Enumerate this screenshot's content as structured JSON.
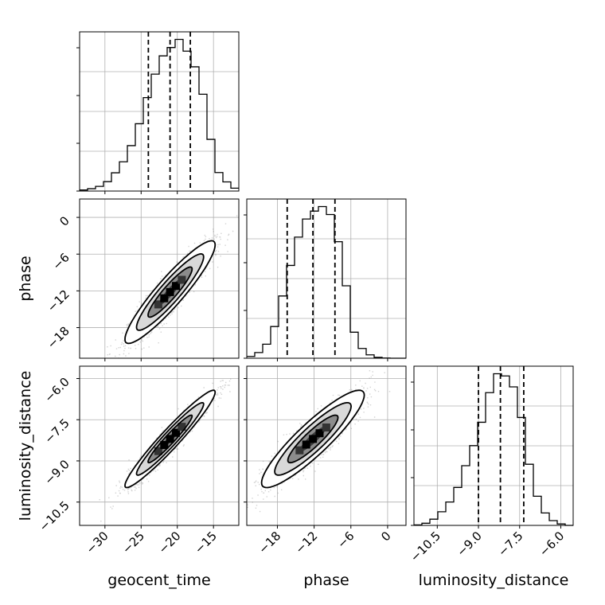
{
  "chart_data": {
    "type": "corner",
    "parameters": [
      "geocent_time",
      "phase",
      "luminosity_distance"
    ],
    "ranges": {
      "geocent_time": [
        -33.5,
        -11.5
      ],
      "phase": [
        -23,
        3
      ],
      "luminosity_distance": [
        -11.35,
        -5.55
      ]
    },
    "ticks": {
      "geocent_time": [
        -30,
        -25,
        -20,
        -15
      ],
      "phase": [
        -18,
        -12,
        -6,
        0
      ],
      "luminosity_distance": [
        -10.5,
        -9.0,
        -7.5,
        -6.0
      ]
    },
    "tick_labels": {
      "geocent_time": [
        "−30",
        "−25",
        "−20",
        "−15"
      ],
      "phase": [
        "−18",
        "−12",
        "−6",
        "0"
      ],
      "luminosity_distance": [
        "−10.5",
        "−9.0",
        "−7.5",
        "−6.0"
      ]
    },
    "quantiles": {
      "geocent_time": [
        -24.0,
        -21.0,
        -18.2
      ],
      "phase": [
        -16.4,
        -12.2,
        -8.6
      ],
      "luminosity_distance": [
        -9.0,
        -8.2,
        -7.35
      ]
    },
    "histograms": {
      "geocent_time": {
        "edges": [
          -33.5,
          -32.4,
          -31.3,
          -30.2,
          -29.1,
          -28.0,
          -26.9,
          -25.8,
          -24.7,
          -23.6,
          -22.5,
          -21.4,
          -20.3,
          -19.2,
          -18.1,
          -17.0,
          -15.9,
          -14.8,
          -13.7,
          -12.6,
          -11.5
        ],
        "counts": [
          0.4,
          0.9,
          1.8,
          3.6,
          7.0,
          11.2,
          17.4,
          25.8,
          35.8,
          44.8,
          51.8,
          55.0,
          58.1,
          53.6,
          47.6,
          37.1,
          19.8,
          7.1,
          3.5,
          1.1
        ]
      },
      "phase": {
        "edges": [
          -23.0,
          -21.7,
          -20.4,
          -19.1,
          -17.8,
          -16.5,
          -15.2,
          -13.9,
          -12.6,
          -11.3,
          -10.0,
          -8.7,
          -7.4,
          -6.1,
          -4.8,
          -3.5,
          -2.2,
          -0.9,
          0.4,
          1.7,
          3.0
        ],
        "counts": [
          0.8,
          2.5,
          6.2,
          14.0,
          27.5,
          41.0,
          53.5,
          61.5,
          65.0,
          67.0,
          63.5,
          51.5,
          32.0,
          11.5,
          4.3,
          1.5,
          0.4,
          0.1,
          0.0,
          0.0
        ]
      },
      "luminosity_distance": {
        "edges": [
          -11.35,
          -11.06,
          -10.77,
          -10.48,
          -10.19,
          -9.9,
          -9.61,
          -9.32,
          -9.03,
          -8.74,
          -8.45,
          -8.16,
          -7.87,
          -7.58,
          -7.29,
          -7.0,
          -6.71,
          -6.42,
          -6.13,
          -5.84,
          -5.55
        ],
        "counts": [
          0.2,
          0.9,
          2.6,
          5.7,
          9.8,
          15.9,
          25.0,
          33.4,
          43.2,
          55.6,
          63.5,
          62.6,
          58.0,
          45.2,
          25.6,
          12.2,
          5.2,
          2.0,
          0.6,
          0.0
        ]
      }
    },
    "pairs": [
      {
        "x": "geocent_time",
        "y": "phase",
        "correlation": 0.92
      },
      {
        "x": "geocent_time",
        "y": "luminosity_distance",
        "correlation": 0.96
      },
      {
        "x": "phase",
        "y": "luminosity_distance",
        "correlation": 0.9
      }
    ],
    "grid": true,
    "colors": {
      "line": "#000000",
      "scatter": "#808080",
      "grid": "#b0b0b0"
    }
  }
}
